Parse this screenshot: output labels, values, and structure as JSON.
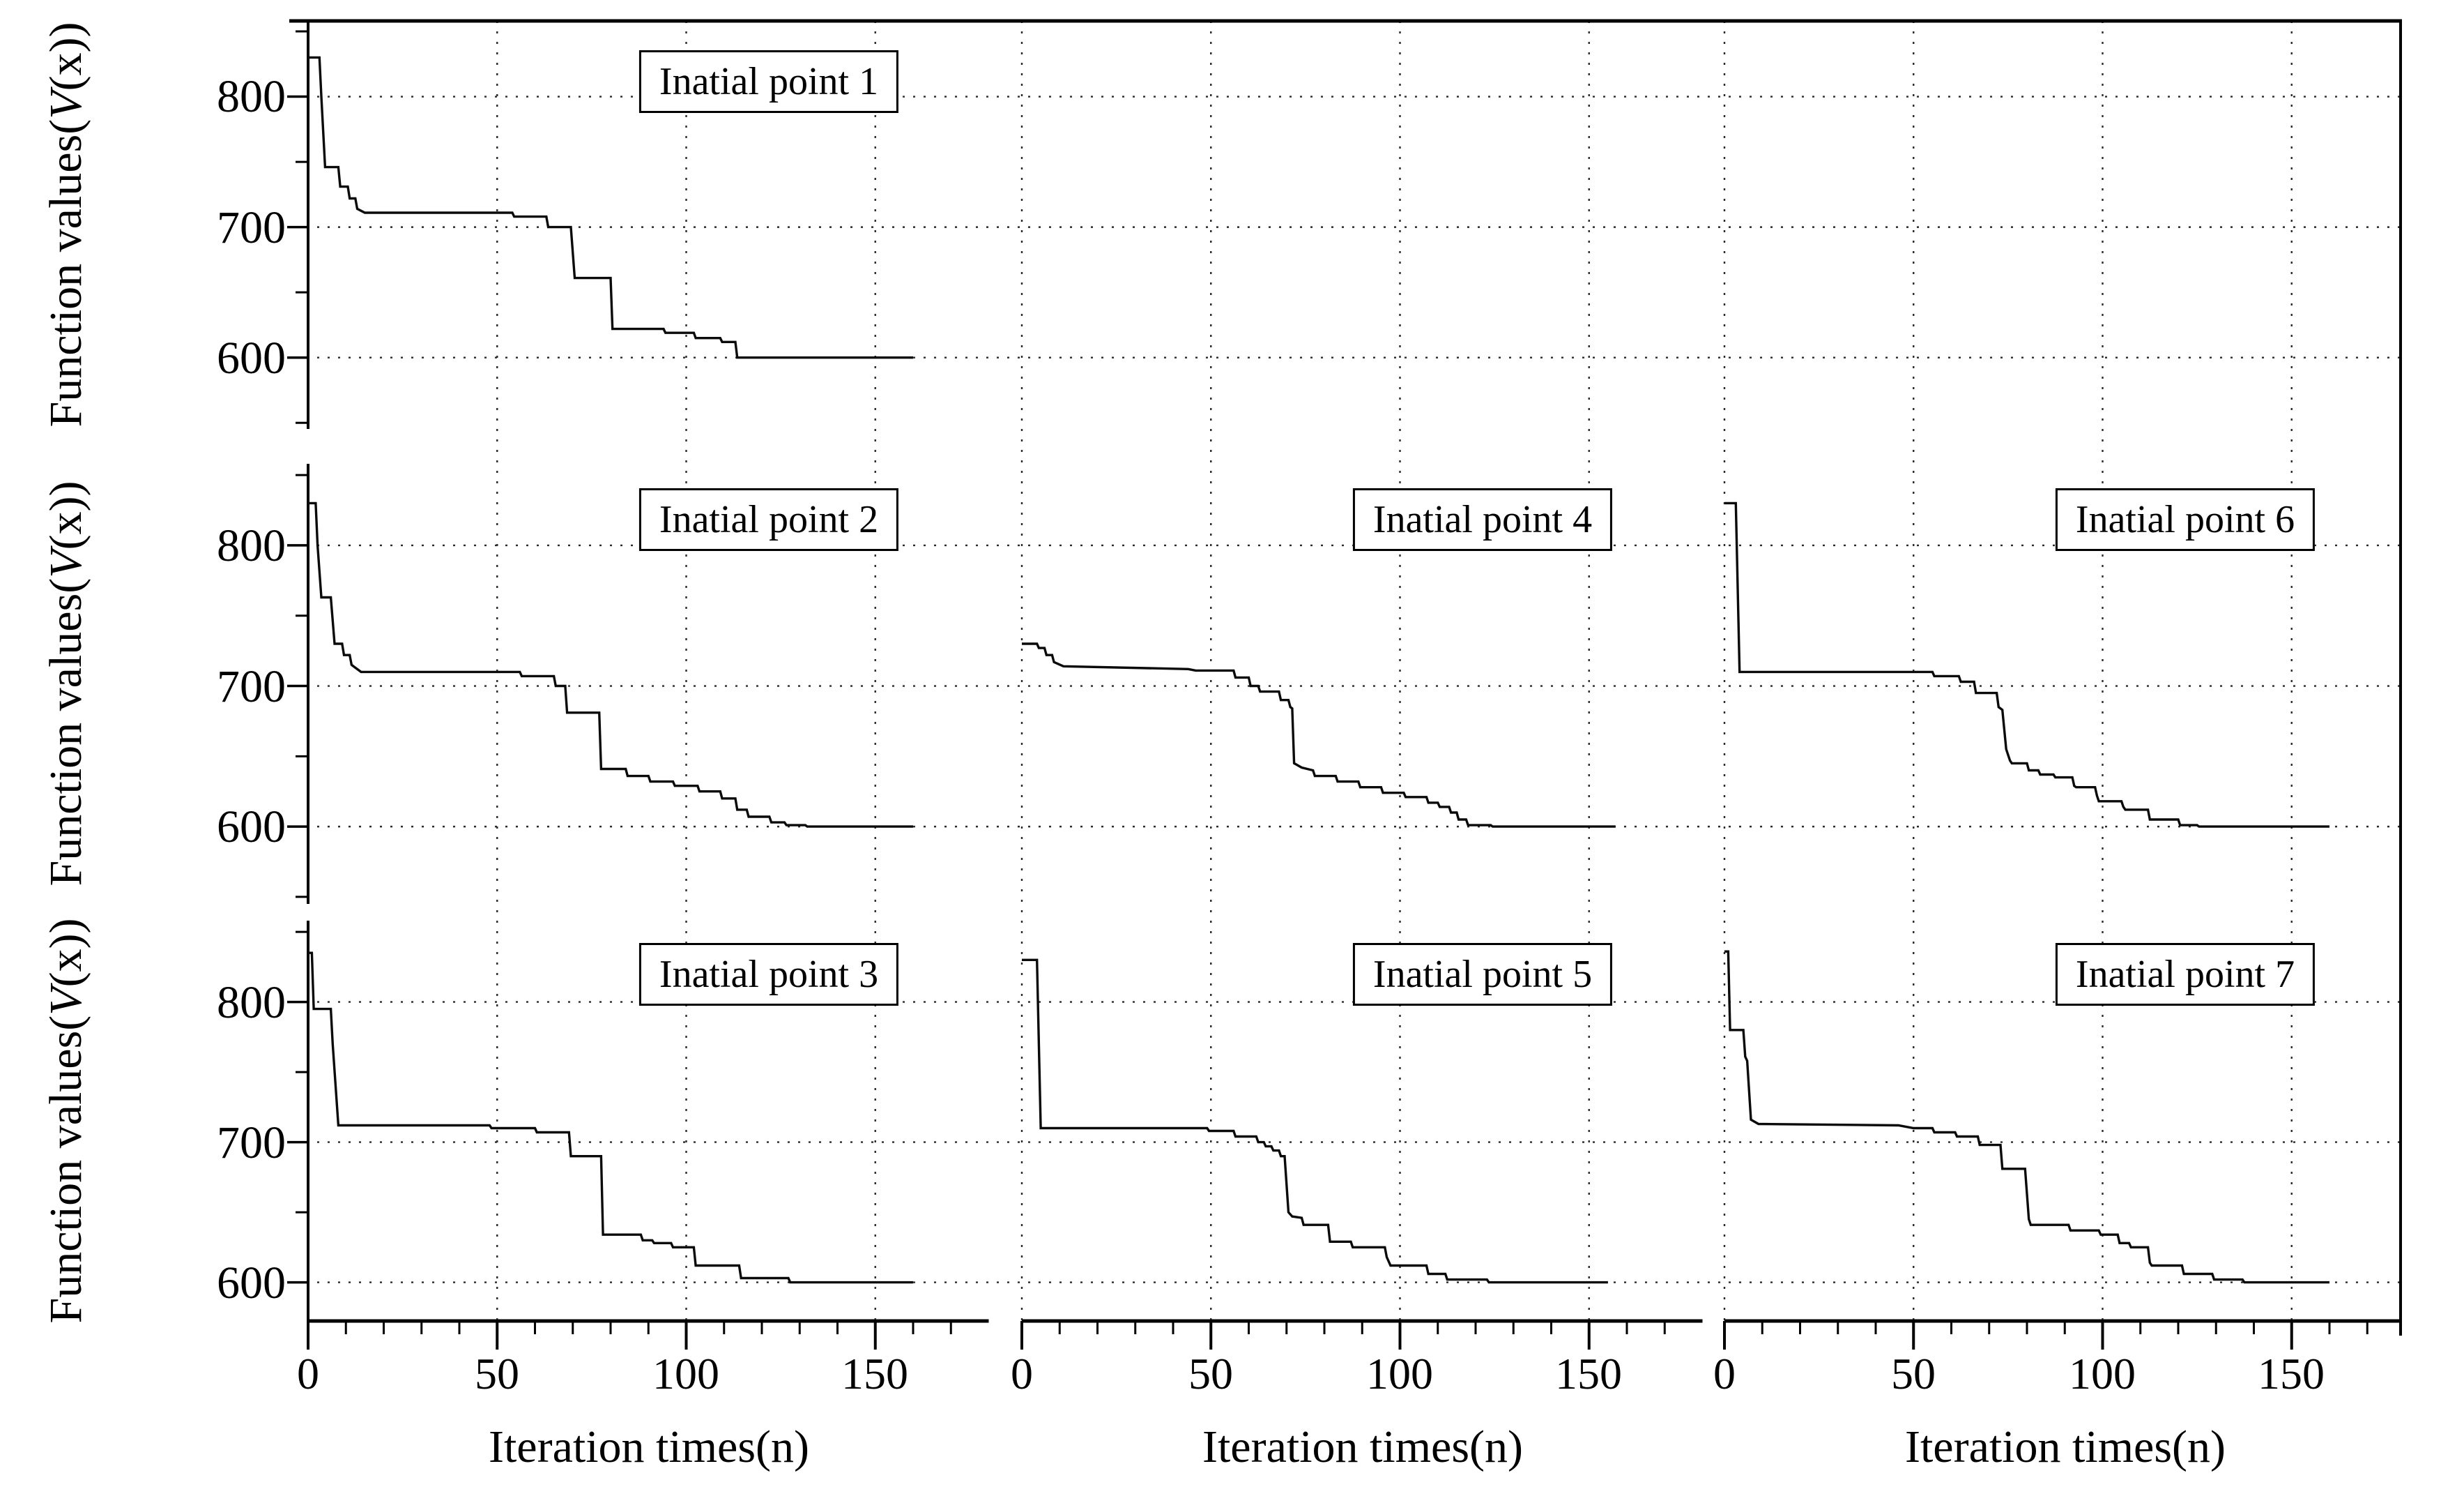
{
  "figure": {
    "xlabel": "Iteration times(n)",
    "ylabel": "Function values(V(x))",
    "ylabel_parts": {
      "pre": "Function values(",
      "var": "V",
      "post": "(x))"
    },
    "yticks": [
      "800",
      "700",
      "600"
    ],
    "xticks": [
      "0",
      "50",
      "100",
      "150"
    ],
    "colors": {
      "background": "#ffffff",
      "line": "#0a0a0a",
      "axis": "#000000",
      "grid": "#2a2a2a",
      "text": "#000000"
    }
  },
  "chart_data": {
    "type": "line",
    "subtype": "staircase-convergence",
    "xlabel": "Iteration times(n)",
    "ylabel": "Function values(V(x))",
    "xlim": [
      0,
      180
    ],
    "ylim": [
      545,
      858
    ],
    "xticks": [
      0,
      50,
      100,
      150
    ],
    "x_minor_step": 10,
    "yticks": [
      600,
      700,
      800
    ],
    "y_minor_ticks": [
      550,
      650,
      750,
      850
    ],
    "grid": "dotted at x=50,100,150 and y=600,700,800",
    "legend": "none",
    "panels": [
      {
        "title": "Inatial point 1",
        "row": 0,
        "col": 0,
        "points": [
          [
            0,
            830
          ],
          [
            3,
            830
          ],
          [
            3.5,
            800
          ],
          [
            4.5,
            746
          ],
          [
            8,
            746
          ],
          [
            8.5,
            731
          ],
          [
            10.5,
            731
          ],
          [
            11,
            722
          ],
          [
            12.5,
            722
          ],
          [
            13,
            714
          ],
          [
            15,
            711
          ],
          [
            54,
            711
          ],
          [
            54.5,
            708
          ],
          [
            63,
            708
          ],
          [
            63.5,
            700
          ],
          [
            69.5,
            700
          ],
          [
            70.5,
            661
          ],
          [
            80,
            661
          ],
          [
            80.5,
            622
          ],
          [
            94,
            622
          ],
          [
            94.5,
            619
          ],
          [
            102,
            619
          ],
          [
            102.5,
            615
          ],
          [
            109,
            615
          ],
          [
            109.5,
            612
          ],
          [
            113,
            612
          ],
          [
            113.5,
            600
          ],
          [
            160,
            600
          ]
        ]
      },
      {
        "title": "Inatial point 2",
        "row": 1,
        "col": 0,
        "points": [
          [
            0,
            830
          ],
          [
            2,
            830
          ],
          [
            2.5,
            800
          ],
          [
            3.5,
            763
          ],
          [
            6,
            763
          ],
          [
            7,
            730
          ],
          [
            9,
            730
          ],
          [
            9.5,
            722
          ],
          [
            11,
            722
          ],
          [
            11.5,
            715
          ],
          [
            14,
            710
          ],
          [
            56,
            710
          ],
          [
            56.5,
            707
          ],
          [
            65,
            707
          ],
          [
            65.5,
            700
          ],
          [
            68,
            700
          ],
          [
            68.5,
            681
          ],
          [
            77,
            681
          ],
          [
            77.5,
            641
          ],
          [
            84,
            641
          ],
          [
            84.5,
            636
          ],
          [
            90,
            636
          ],
          [
            90.5,
            632
          ],
          [
            96.5,
            632
          ],
          [
            97,
            629
          ],
          [
            103,
            629
          ],
          [
            103.5,
            625
          ],
          [
            109,
            625
          ],
          [
            109.5,
            620
          ],
          [
            113,
            620
          ],
          [
            113.5,
            612
          ],
          [
            116,
            612
          ],
          [
            116.5,
            607
          ],
          [
            122,
            607
          ],
          [
            122.5,
            603
          ],
          [
            126,
            603
          ],
          [
            126.5,
            601
          ],
          [
            131.5,
            601
          ],
          [
            132,
            600
          ],
          [
            160,
            600
          ]
        ]
      },
      {
        "title": "Inatial point 3",
        "row": 2,
        "col": 0,
        "points": [
          [
            0,
            835
          ],
          [
            1,
            835
          ],
          [
            1.5,
            795
          ],
          [
            6,
            795
          ],
          [
            6.5,
            770
          ],
          [
            8,
            712
          ],
          [
            48,
            712
          ],
          [
            48.5,
            710
          ],
          [
            60,
            710
          ],
          [
            60.5,
            707
          ],
          [
            69,
            707
          ],
          [
            69.5,
            690
          ],
          [
            77.5,
            690
          ],
          [
            78,
            634
          ],
          [
            88,
            634
          ],
          [
            88.5,
            630
          ],
          [
            91,
            630
          ],
          [
            91.5,
            628
          ],
          [
            96,
            628
          ],
          [
            96.5,
            625
          ],
          [
            102,
            625
          ],
          [
            102.5,
            612
          ],
          [
            114,
            612
          ],
          [
            114.5,
            603
          ],
          [
            127,
            603
          ],
          [
            127.5,
            600
          ],
          [
            160,
            600
          ]
        ]
      },
      {
        "title": "Inatial point 4",
        "row": 1,
        "col": 1,
        "points": [
          [
            0,
            730
          ],
          [
            4,
            730
          ],
          [
            4.5,
            727
          ],
          [
            6,
            727
          ],
          [
            6.5,
            722
          ],
          [
            8,
            722
          ],
          [
            8.5,
            717
          ],
          [
            11,
            714
          ],
          [
            44,
            712
          ],
          [
            46,
            711
          ],
          [
            56,
            711
          ],
          [
            56.5,
            706
          ],
          [
            60,
            706
          ],
          [
            60.5,
            700
          ],
          [
            62.5,
            700
          ],
          [
            63,
            696
          ],
          [
            68,
            696
          ],
          [
            68.5,
            690
          ],
          [
            70.5,
            690
          ],
          [
            71,
            685
          ],
          [
            71.5,
            684
          ],
          [
            72,
            645
          ],
          [
            74,
            642
          ],
          [
            77,
            640
          ],
          [
            77.5,
            636
          ],
          [
            83,
            636
          ],
          [
            83.5,
            632
          ],
          [
            89,
            632
          ],
          [
            89.5,
            628
          ],
          [
            95,
            628
          ],
          [
            95.5,
            624
          ],
          [
            101,
            624
          ],
          [
            101.5,
            621
          ],
          [
            107,
            621
          ],
          [
            107.5,
            617
          ],
          [
            110,
            617
          ],
          [
            110.5,
            614
          ],
          [
            113,
            614
          ],
          [
            113.5,
            610
          ],
          [
            115,
            610
          ],
          [
            115.5,
            605
          ],
          [
            117.5,
            605
          ],
          [
            118,
            601
          ],
          [
            124,
            601
          ],
          [
            124.5,
            600
          ],
          [
            157,
            600
          ]
        ]
      },
      {
        "title": "Inatial point 5",
        "row": 2,
        "col": 1,
        "points": [
          [
            0,
            830
          ],
          [
            4,
            830
          ],
          [
            5,
            710
          ],
          [
            49,
            710
          ],
          [
            49.5,
            708
          ],
          [
            56,
            708
          ],
          [
            56.5,
            704
          ],
          [
            62,
            704
          ],
          [
            62.5,
            700
          ],
          [
            64,
            700
          ],
          [
            64.5,
            697
          ],
          [
            66,
            697
          ],
          [
            66.5,
            694
          ],
          [
            68,
            694
          ],
          [
            68.5,
            690
          ],
          [
            69.5,
            690
          ],
          [
            70.5,
            650
          ],
          [
            71.5,
            647
          ],
          [
            74,
            646
          ],
          [
            74.5,
            641
          ],
          [
            81,
            641
          ],
          [
            81.5,
            629
          ],
          [
            87,
            629
          ],
          [
            87.5,
            625
          ],
          [
            96,
            625
          ],
          [
            96.5,
            618
          ],
          [
            97,
            615
          ],
          [
            97.5,
            612
          ],
          [
            107,
            612
          ],
          [
            107.5,
            606
          ],
          [
            112,
            606
          ],
          [
            112.5,
            602
          ],
          [
            123,
            602
          ],
          [
            123.5,
            600
          ],
          [
            155,
            600
          ]
        ]
      },
      {
        "title": "Inatial point 6",
        "row": 1,
        "col": 2,
        "points": [
          [
            0,
            830
          ],
          [
            3,
            830
          ],
          [
            4,
            710
          ],
          [
            55,
            710
          ],
          [
            55.5,
            707
          ],
          [
            62,
            707
          ],
          [
            62.5,
            703
          ],
          [
            66,
            703
          ],
          [
            66.5,
            695
          ],
          [
            72,
            695
          ],
          [
            72.5,
            685
          ],
          [
            73.5,
            683
          ],
          [
            74.5,
            655
          ],
          [
            75.5,
            647
          ],
          [
            76,
            645
          ],
          [
            80,
            645
          ],
          [
            80.5,
            640
          ],
          [
            83,
            640
          ],
          [
            83.5,
            637
          ],
          [
            87,
            637
          ],
          [
            87.5,
            635
          ],
          [
            92,
            635
          ],
          [
            92.5,
            629
          ],
          [
            93,
            628
          ],
          [
            98,
            628
          ],
          [
            98.5,
            622
          ],
          [
            99,
            618
          ],
          [
            105,
            618
          ],
          [
            105.5,
            614
          ],
          [
            106,
            612
          ],
          [
            112,
            612
          ],
          [
            112.5,
            605
          ],
          [
            120,
            605
          ],
          [
            120.5,
            601
          ],
          [
            125,
            601
          ],
          [
            125.5,
            600
          ],
          [
            160,
            600
          ]
        ]
      },
      {
        "title": "Inatial point 7",
        "row": 2,
        "col": 2,
        "points": [
          [
            0,
            836
          ],
          [
            1,
            836
          ],
          [
            1.5,
            780
          ],
          [
            5,
            780
          ],
          [
            5.5,
            761
          ],
          [
            6,
            758
          ],
          [
            7,
            716
          ],
          [
            9,
            713
          ],
          [
            46,
            712
          ],
          [
            50,
            710
          ],
          [
            55,
            710
          ],
          [
            55.5,
            707
          ],
          [
            61,
            707
          ],
          [
            61.5,
            704
          ],
          [
            67,
            704
          ],
          [
            67.5,
            698
          ],
          [
            73,
            698
          ],
          [
            73.5,
            681
          ],
          [
            79.5,
            681
          ],
          [
            80.5,
            645
          ],
          [
            81,
            641
          ],
          [
            91,
            641
          ],
          [
            91.5,
            637
          ],
          [
            99,
            637
          ],
          [
            99.5,
            634
          ],
          [
            104,
            634
          ],
          [
            104.5,
            628
          ],
          [
            107,
            628
          ],
          [
            107.5,
            625
          ],
          [
            112,
            625
          ],
          [
            112.5,
            614
          ],
          [
            113,
            612
          ],
          [
            121,
            612
          ],
          [
            121.5,
            606
          ],
          [
            129,
            606
          ],
          [
            129.5,
            602
          ],
          [
            137,
            602
          ],
          [
            137.5,
            600
          ],
          [
            160,
            600
          ]
        ]
      }
    ]
  }
}
